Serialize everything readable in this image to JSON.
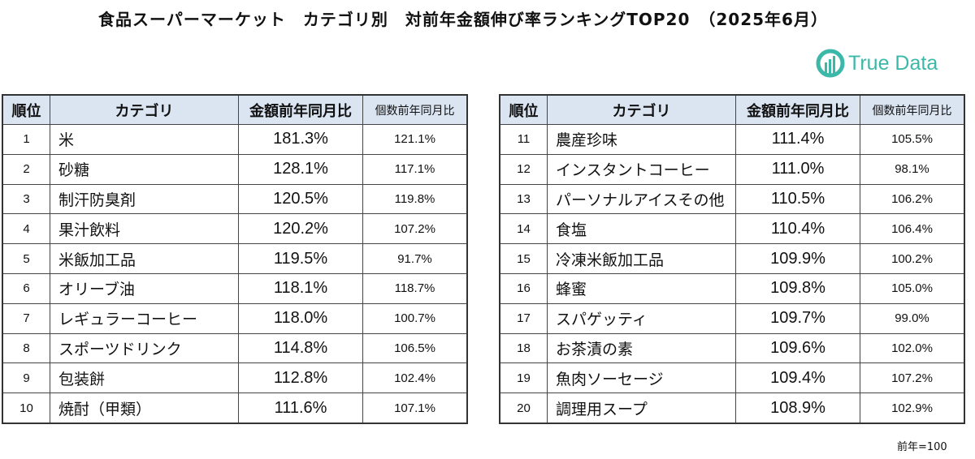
{
  "title": "食品スーパーマーケット　カテゴリ別　対前年金額伸び率ランキングTOP20　（2025年6月）",
  "logo": {
    "text": "True Data",
    "color": "#3cb8a9"
  },
  "header_color": "#dbe5f1",
  "columns": {
    "rank": "順位",
    "category": "カテゴリ",
    "amount": "金額前年同月比",
    "count": "個数前年同月比"
  },
  "left_rows": [
    {
      "rank": "1",
      "category": "米",
      "amount": "181.3%",
      "count": "121.1%"
    },
    {
      "rank": "2",
      "category": "砂糖",
      "amount": "128.1%",
      "count": "117.1%"
    },
    {
      "rank": "3",
      "category": "制汗防臭剤",
      "amount": "120.5%",
      "count": "119.8%"
    },
    {
      "rank": "4",
      "category": "果汁飲料",
      "amount": "120.2%",
      "count": "107.2%"
    },
    {
      "rank": "5",
      "category": "米飯加工品",
      "amount": "119.5%",
      "count": "91.7%"
    },
    {
      "rank": "6",
      "category": "オリーブ油",
      "amount": "118.1%",
      "count": "118.7%"
    },
    {
      "rank": "7",
      "category": "レギュラーコーヒー",
      "amount": "118.0%",
      "count": "100.7%"
    },
    {
      "rank": "8",
      "category": "スポーツドリンク",
      "amount": "114.8%",
      "count": "106.5%"
    },
    {
      "rank": "9",
      "category": "包装餅",
      "amount": "112.8%",
      "count": "102.4%"
    },
    {
      "rank": "10",
      "category": "焼酎（甲類）",
      "amount": "111.6%",
      "count": "107.1%"
    }
  ],
  "right_rows": [
    {
      "rank": "11",
      "category": "農産珍味",
      "amount": "111.4%",
      "count": "105.5%"
    },
    {
      "rank": "12",
      "category": "インスタントコーヒー",
      "amount": "111.0%",
      "count": "98.1%"
    },
    {
      "rank": "13",
      "category": "パーソナルアイスその他",
      "amount": "110.5%",
      "count": "106.2%"
    },
    {
      "rank": "14",
      "category": "食塩",
      "amount": "110.4%",
      "count": "106.4%"
    },
    {
      "rank": "15",
      "category": "冷凍米飯加工品",
      "amount": "109.9%",
      "count": "100.2%"
    },
    {
      "rank": "16",
      "category": "蜂蜜",
      "amount": "109.8%",
      "count": "105.0%"
    },
    {
      "rank": "17",
      "category": "スパゲッティ",
      "amount": "109.7%",
      "count": "99.0%"
    },
    {
      "rank": "18",
      "category": "お茶漬の素",
      "amount": "109.6%",
      "count": "102.0%"
    },
    {
      "rank": "19",
      "category": "魚肉ソーセージ",
      "amount": "109.4%",
      "count": "107.2%"
    },
    {
      "rank": "20",
      "category": "調理用スープ",
      "amount": "108.9%",
      "count": "102.9%"
    }
  ],
  "footnote": "前年=100"
}
